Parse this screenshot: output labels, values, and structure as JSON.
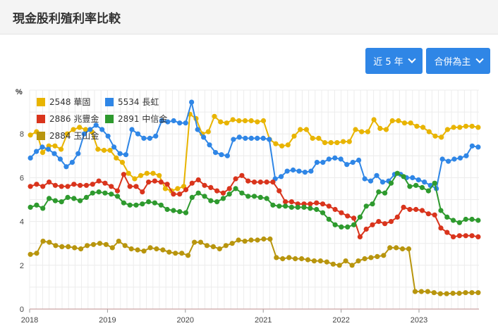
{
  "header": {
    "title": "現金股利殖利率比較"
  },
  "controls": {
    "period_label": "近 5 年",
    "scope_label": "合併為主"
  },
  "colors": {
    "s2548": "#e8b400",
    "s5534": "#2f86e6",
    "s2886": "#d9341c",
    "s2891": "#2e9a2e",
    "s2884": "#b8950d"
  },
  "chart_data": {
    "type": "line",
    "ylabel": "%",
    "ylim": [
      0,
      10
    ],
    "yticks": [
      0,
      2,
      4,
      6,
      8
    ],
    "xlim": [
      2018.0,
      2023.77
    ],
    "xticks": [
      2018,
      2019,
      2020,
      2021,
      2022,
      2023
    ],
    "xtick_labels": [
      "2018",
      "2019",
      "2020",
      "2021",
      "2022",
      "2023"
    ],
    "grid": true,
    "legend_position": "top-left",
    "series": [
      {
        "name": "2548 華固",
        "color_key": "s2548",
        "values": [
          7.95,
          8.1,
          7.15,
          7.45,
          7.45,
          7.3,
          8.0,
          8.2,
          8.3,
          8.2,
          8.1,
          7.3,
          7.25,
          7.25,
          6.9,
          6.7,
          6.2,
          5.95,
          6.1,
          6.2,
          6.2,
          6.1,
          5.5,
          5.4,
          5.5,
          5.6,
          8.9,
          8.7,
          8.0,
          8.1,
          8.8,
          8.55,
          8.5,
          8.65,
          8.6,
          8.6,
          8.6,
          8.55,
          8.6,
          7.75,
          7.55,
          7.45,
          7.5,
          7.9,
          8.2,
          8.2,
          7.8,
          7.8,
          7.6,
          7.6,
          7.6,
          7.65,
          7.65,
          8.2,
          8.1,
          8.1,
          8.65,
          8.25,
          8.2,
          8.6,
          8.6,
          8.5,
          8.5,
          8.35,
          8.3,
          8.1,
          7.9,
          7.85,
          8.2,
          8.3,
          8.3,
          8.35,
          8.35,
          8.3
        ]
      },
      {
        "name": "5534 長虹",
        "color_key": "s5534",
        "values": [
          6.9,
          7.2,
          7.4,
          7.3,
          7.1,
          6.85,
          6.5,
          6.7,
          7.1,
          8.0,
          8.2,
          8.4,
          8.2,
          7.9,
          7.4,
          7.1,
          7.05,
          8.2,
          8.0,
          7.8,
          7.8,
          7.9,
          8.6,
          8.55,
          8.6,
          8.5,
          8.5,
          9.45,
          8.2,
          7.85,
          7.5,
          7.15,
          7.05,
          7.0,
          7.75,
          7.85,
          7.8,
          7.8,
          7.8,
          7.8,
          7.75,
          5.95,
          6.05,
          6.3,
          6.35,
          6.3,
          6.25,
          6.3,
          6.7,
          6.7,
          6.85,
          6.9,
          6.85,
          6.6,
          6.7,
          6.8,
          5.95,
          5.85,
          6.1,
          5.8,
          5.85,
          6.15,
          6.15,
          6.0,
          6.0,
          5.9,
          5.8,
          5.65,
          5.5,
          6.85,
          6.75,
          6.85,
          6.9,
          7.0,
          7.45,
          7.4
        ]
      },
      {
        "name": "2886 兆豐金",
        "color_key": "s2886",
        "values": [
          5.6,
          5.7,
          5.6,
          5.8,
          5.65,
          5.6,
          5.6,
          5.7,
          5.65,
          5.65,
          5.7,
          5.85,
          5.75,
          5.6,
          5.4,
          6.15,
          5.6,
          5.6,
          5.35,
          5.8,
          5.85,
          5.8,
          5.7,
          5.25,
          5.25,
          5.45,
          5.75,
          5.9,
          5.65,
          5.55,
          5.4,
          5.3,
          5.5,
          5.95,
          6.1,
          5.85,
          5.8,
          5.8,
          5.8,
          5.8,
          5.4,
          4.9,
          4.9,
          4.8,
          4.8,
          4.8,
          4.85,
          4.8,
          4.7,
          4.55,
          4.4,
          4.25,
          4.15,
          3.3,
          3.65,
          3.85,
          4.0,
          3.9,
          4.0,
          4.2,
          4.65,
          4.55,
          4.55,
          4.5,
          4.35,
          4.3,
          3.7,
          3.5,
          3.3,
          3.35,
          3.35,
          3.35,
          3.3
        ]
      },
      {
        "name": "2891 中信金",
        "color_key": "s2891",
        "values": [
          4.65,
          4.75,
          4.6,
          5.05,
          4.95,
          4.9,
          5.1,
          5.05,
          4.95,
          5.1,
          5.3,
          5.35,
          5.3,
          5.25,
          5.15,
          4.85,
          4.75,
          4.75,
          4.8,
          4.9,
          4.85,
          4.75,
          4.55,
          4.5,
          4.45,
          4.4,
          5.1,
          5.3,
          5.15,
          4.95,
          4.9,
          5.05,
          5.25,
          5.5,
          5.3,
          5.15,
          5.15,
          5.1,
          5.05,
          4.75,
          4.7,
          4.7,
          4.65,
          4.65,
          4.65,
          4.6,
          4.55,
          4.4,
          4.1,
          3.85,
          3.75,
          3.75,
          3.85,
          4.2,
          4.7,
          4.8,
          5.35,
          5.3,
          5.75,
          6.2,
          6.05,
          5.6,
          5.65,
          5.55,
          5.4,
          5.75,
          4.5,
          4.2,
          4.05,
          3.95,
          4.1,
          4.1,
          4.05
        ]
      },
      {
        "name": "2884 玉山金",
        "color_key": "s2884",
        "values": [
          2.5,
          2.55,
          3.1,
          3.05,
          2.9,
          2.85,
          2.85,
          2.8,
          2.75,
          2.9,
          2.95,
          3.0,
          2.95,
          2.8,
          3.1,
          2.9,
          2.75,
          2.7,
          2.65,
          2.8,
          2.75,
          2.7,
          2.6,
          2.55,
          2.55,
          2.45,
          3.05,
          3.05,
          2.9,
          2.85,
          2.75,
          2.9,
          3.0,
          3.15,
          3.1,
          3.15,
          3.15,
          3.2,
          3.2,
          2.35,
          2.3,
          2.35,
          2.3,
          2.3,
          2.25,
          2.2,
          2.2,
          2.15,
          2.05,
          2.0,
          2.2,
          2.0,
          2.2,
          2.3,
          2.35,
          2.4,
          2.45,
          2.8,
          2.8,
          2.75,
          2.75,
          0.8,
          0.8,
          0.8,
          0.75,
          0.7,
          0.7,
          0.72,
          0.72,
          0.75,
          0.75,
          0.75
        ]
      }
    ]
  }
}
